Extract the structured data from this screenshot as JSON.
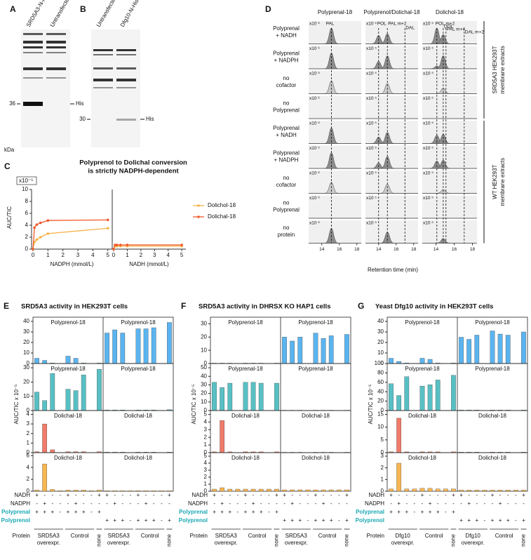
{
  "blots": [
    {
      "label": "A",
      "lanes": [
        "SRD5A3-N-His",
        "Untransfected"
      ],
      "marker": "36",
      "band": "His",
      "unit": "kDa"
    },
    {
      "label": "B",
      "lanes": [
        "Untransfected",
        "Dfg10-N-His"
      ],
      "marker": "30",
      "band": "His",
      "unit": "kDa"
    }
  ],
  "chromatograms": {
    "label": "D",
    "columns": [
      {
        "title": "Polyprenal-18",
        "scale": "x10 ⁶",
        "peaks": [
          "PAL"
        ]
      },
      {
        "title": "Polyprenol/Dolichal-18",
        "scale": "x10 ⁵",
        "peaks": [
          "POL",
          "PAL m+2",
          "DAL"
        ]
      },
      {
        "title": "Dolichol-18",
        "scale": "x10 ⁵",
        "peaks": [
          "POL m+2",
          "DOL",
          "PAL m+4",
          "DAL m+2"
        ]
      }
    ],
    "rows": [
      [
        "Polyprenal",
        "+ NADH"
      ],
      [
        "Polyprenal",
        "+ NADPH"
      ],
      [
        "no",
        "cofactor"
      ],
      [
        "no",
        "Polyprenal"
      ],
      [
        "Polyprenal",
        "+ NADH"
      ],
      [
        "Polyprenal",
        "+ NADPH"
      ],
      [
        "no",
        "cofactor"
      ],
      [
        "no",
        "Polyprenal"
      ],
      [
        "no",
        "protein"
      ]
    ],
    "groups": [
      [
        "SRD5A3 HEK293T",
        "membrane extracts"
      ],
      [
        "WT HEK293T",
        "membrane extracts"
      ]
    ],
    "xlim": [
      12.5,
      18.5
    ],
    "xticks": [
      14,
      16,
      18
    ],
    "xlabel": "Retention time (min)"
  },
  "chart_data": [
    {
      "type": "line",
      "label": "C",
      "title": [
        "Polyprenol to Dolichal conversion",
        "is strictly NADPH-dependent"
      ],
      "y_scale": "x10⁻⁵",
      "ylabel": "AUC/TIC",
      "xlabels": [
        "NADPH (mmol/L)",
        "NADH (mmol/L)"
      ],
      "x": [
        0,
        0.1,
        0.25,
        0.5,
        1,
        5
      ],
      "xlim": [
        0,
        5.2
      ],
      "xticks": [
        0,
        1,
        2,
        3,
        4,
        5
      ],
      "ylim": [
        0,
        10
      ],
      "yticks": [
        0,
        2,
        4,
        6,
        8,
        10
      ],
      "series": [
        {
          "name": "Dolichol-18",
          "color": "#f7b24a",
          "values": [
            0,
            1.2,
            1.6,
            2,
            2.6,
            3.5
          ],
          "values_nadh": [
            0,
            0.5,
            0.5,
            0.5,
            0.5,
            0.5
          ]
        },
        {
          "name": "Dolichal-18",
          "color": "#ef5a2a",
          "values": [
            0,
            3.6,
            4.1,
            4.4,
            4.8,
            4.9
          ],
          "values_nadh": [
            0,
            0.7,
            0.7,
            0.7,
            0.7,
            0.7
          ]
        }
      ]
    },
    {
      "type": "bar",
      "label": "E",
      "title": "SRD5A3 activity in HEK293T cells",
      "ylabel": "AUC/TIC x 10⁻⁵",
      "rows": [
        {
          "labels": [
            "Polyprenol-18",
            "Polyprenol-18"
          ],
          "ylim": [
            0,
            44
          ],
          "yticks": [
            0,
            10,
            20,
            30,
            40
          ],
          "color": "#5ab4ef",
          "values": [
            5,
            3,
            0.5,
            0,
            7,
            5,
            0.5,
            0,
            0.5,
            29,
            32,
            29,
            0,
            33,
            33,
            34,
            0,
            39
          ]
        },
        {
          "labels": [
            "Polyprenal-18",
            "Polyprenal-18"
          ],
          "ylim": [
            0,
            33
          ],
          "yticks": [
            0,
            10,
            20,
            30
          ],
          "color": "#58c0c4",
          "values": [
            13,
            7,
            26,
            0,
            15,
            14,
            25,
            0,
            29,
            0.4,
            0.4,
            0.4,
            0,
            0.4,
            0.4,
            0.4,
            0,
            0.6
          ]
        },
        {
          "labels": [
            "Dolichal-18",
            "Dolichal-18"
          ],
          "ylim": [
            0,
            4.4
          ],
          "yticks": [
            0,
            1,
            2,
            3,
            4
          ],
          "color": "#f07b6a",
          "values": [
            0.1,
            3,
            0.3,
            0,
            0.1,
            0.1,
            0.1,
            0,
            0.1,
            0.05,
            0.05,
            0.05,
            0,
            0.05,
            0.05,
            0.05,
            0,
            0.05
          ]
        },
        {
          "labels": [
            "Dolichol-18",
            "Dolichol-18"
          ],
          "ylim": [
            0,
            6.5
          ],
          "yticks": [
            0,
            2,
            4,
            6
          ],
          "color": "#f6b652",
          "values": [
            0.2,
            4.6,
            0.3,
            0.1,
            0.2,
            0.2,
            0.2,
            0.1,
            0.2,
            0.1,
            0.1,
            0.1,
            0.1,
            0.1,
            0.1,
            0.1,
            0.1,
            0.1
          ]
        }
      ],
      "conditions": [
        {
          "name": "NADH",
          "signs": [
            "+",
            "-",
            "-",
            "-",
            "+",
            "-",
            "-",
            "-",
            "+",
            "+",
            "-",
            "-",
            "-",
            "+",
            "-",
            "-",
            "-",
            "+"
          ]
        },
        {
          "name": "NADPH",
          "signs": [
            "-",
            "+",
            "-",
            "-",
            "-",
            "+",
            "-",
            "-",
            "-",
            "-",
            "+",
            "-",
            "-",
            "-",
            "+",
            "-",
            "-",
            "-"
          ]
        },
        {
          "name": "Polyprenal",
          "color": "#1aa9b3",
          "signs": [
            "+",
            "+",
            "+",
            "-",
            "+",
            "+",
            "+",
            "-",
            "+",
            null,
            null,
            null,
            null,
            null,
            null,
            null,
            null,
            null
          ]
        },
        {
          "name": "Polyprenol",
          "color": "#1aa9b3",
          "signs": [
            null,
            null,
            null,
            null,
            null,
            null,
            null,
            null,
            null,
            "+",
            "+",
            "+",
            "-",
            "+",
            "+",
            "+",
            "-",
            "+"
          ]
        }
      ],
      "protein_label": "Protein",
      "groups": [
        [
          "SRD5A3",
          "overexpr."
        ],
        [
          "Control"
        ],
        [
          "none"
        ],
        [
          "SRD5A3",
          "overexpr."
        ],
        [
          "Control"
        ],
        [
          "none"
        ]
      ]
    },
    {
      "type": "bar",
      "label": "F",
      "title": "SRD5A3 activity in DHRSX KO HAP1 cells",
      "ylabel": "AUC/TIC x 10⁻⁵",
      "rows": [
        {
          "labels": [
            "Polyprenol-18",
            "Polyprenol-18"
          ],
          "ylim": [
            0,
            35
          ],
          "yticks": [
            0,
            10,
            20,
            30
          ],
          "color": "#5ab4ef",
          "values": [
            0.3,
            0.3,
            0.3,
            0,
            0.3,
            0.3,
            0.3,
            0,
            0.3,
            20,
            17,
            20,
            0,
            23,
            19,
            21,
            0,
            22
          ]
        },
        {
          "labels": [
            "Polyprenal-18",
            "Polyprenal-18"
          ],
          "ylim": [
            0,
            55
          ],
          "yticks": [
            0,
            10,
            20,
            30,
            40,
            50
          ],
          "color": "#58c0c4",
          "values": [
            33,
            27,
            32,
            0,
            33,
            33,
            32,
            0,
            32,
            0.4,
            0.4,
            0.4,
            0,
            0.4,
            0.4,
            0.4,
            0,
            0.4
          ]
        },
        {
          "labels": [
            "Dolichal-18",
            "Dolichal-18"
          ],
          "ylim": [
            0,
            5.5
          ],
          "yticks": [
            0,
            1,
            2,
            3,
            4,
            5
          ],
          "color": "#f07b6a",
          "values": [
            0.1,
            4.2,
            0.1,
            0,
            0.1,
            0.1,
            0.1,
            0,
            0.1,
            0.05,
            0.05,
            0.05,
            0,
            0.05,
            0.05,
            0.05,
            0,
            0.05
          ]
        },
        {
          "labels": [
            "Dolichol-18",
            "Dolichol-18"
          ],
          "ylim": [
            0,
            5.5
          ],
          "yticks": [
            0,
            1,
            2,
            3,
            4,
            5
          ],
          "color": "#f6b652",
          "values": [
            0.3,
            0.5,
            0.3,
            0.3,
            0.3,
            0.3,
            0.3,
            0.3,
            0.3,
            0.2,
            0.2,
            0.2,
            0.2,
            0.2,
            0.2,
            0.2,
            0.2,
            0.2
          ]
        }
      ],
      "conditions": [
        {
          "name": "NADH",
          "signs": [
            "+",
            "-",
            "-",
            "-",
            "+",
            "-",
            "-",
            "-",
            "+",
            "+",
            "-",
            "-",
            "-",
            "+",
            "-",
            "-",
            "-",
            "+"
          ]
        },
        {
          "name": "NADPH",
          "signs": [
            "-",
            "+",
            "-",
            "-",
            "-",
            "+",
            "-",
            "-",
            "-",
            "-",
            "+",
            "-",
            "-",
            "-",
            "+",
            "-",
            "-",
            "-"
          ]
        },
        {
          "name": "Polyprenal",
          "color": "#1aa9b3",
          "signs": [
            "+",
            "+",
            "+",
            "-",
            "+",
            "+",
            "+",
            "-",
            "+",
            null,
            null,
            null,
            null,
            null,
            null,
            null,
            null,
            null
          ]
        },
        {
          "name": "Polyprenol",
          "color": "#1aa9b3",
          "signs": [
            null,
            null,
            null,
            null,
            null,
            null,
            null,
            null,
            null,
            "+",
            "+",
            "+",
            "-",
            "+",
            "+",
            "+",
            "-",
            "+"
          ]
        }
      ],
      "protein_label": "Protein",
      "groups": [
        [
          "SRD5A3",
          "overexpr."
        ],
        [
          "Control"
        ],
        [
          "none"
        ],
        [
          "SRD5A3",
          "overexpr."
        ],
        [
          "Control"
        ],
        [
          "none"
        ]
      ]
    },
    {
      "type": "bar",
      "label": "G",
      "title": "Yeast Dfg10 activity in HEK293T cells",
      "ylabel": "AUC/TIC x 10⁻⁵",
      "rows": [
        {
          "labels": [
            "Polyprenol-18",
            "Polyprenol-18"
          ],
          "ylim": [
            0,
            44
          ],
          "yticks": [
            0,
            10,
            20,
            30,
            40
          ],
          "color": "#5ab4ef",
          "values": [
            5,
            2,
            0.5,
            0,
            5,
            4,
            0.5,
            0,
            0.5,
            25,
            23,
            27,
            0,
            31,
            28,
            27,
            0,
            30
          ]
        },
        {
          "labels": [
            "Polyprenal-18",
            "Polyprenal-18"
          ],
          "ylim": [
            0,
            100
          ],
          "yticks": [
            0,
            20,
            40,
            60,
            80,
            100
          ],
          "color": "#58c0c4",
          "values": [
            57,
            32,
            72,
            0,
            52,
            55,
            65,
            0,
            75,
            1,
            1,
            1,
            0,
            1,
            1,
            1,
            0,
            1
          ]
        },
        {
          "labels": [
            "Dolichal-18",
            "Dolichal-18"
          ],
          "ylim": [
            0,
            16.5
          ],
          "yticks": [
            0,
            5,
            10,
            15
          ],
          "color": "#f07b6a",
          "values": [
            0.3,
            13.5,
            0.3,
            0,
            0.3,
            0.3,
            0.3,
            0,
            0.3,
            0.2,
            0.2,
            0.2,
            0,
            0.2,
            0.2,
            0.2,
            0,
            0.2
          ]
        },
        {
          "labels": [
            "Dolichol-18",
            "Dolichol-18"
          ],
          "ylim": [
            0,
            3.3
          ],
          "yticks": [
            0,
            1,
            2,
            3
          ],
          "color": "#f6b652",
          "values": [
            0.2,
            2.4,
            0.2,
            0.2,
            0.25,
            0.25,
            0.2,
            0.2,
            0.2,
            0.1,
            0.1,
            0.1,
            0.1,
            0.1,
            0.1,
            0.1,
            0.1,
            0.1
          ]
        }
      ],
      "conditions": [
        {
          "name": "NADH",
          "signs": [
            "+",
            "-",
            "-",
            "-",
            "+",
            "-",
            "-",
            "-",
            "+",
            "+",
            "-",
            "-",
            "-",
            "+",
            "-",
            "-",
            "-",
            "+"
          ]
        },
        {
          "name": "NADPH",
          "signs": [
            "-",
            "+",
            "-",
            "-",
            "-",
            "+",
            "-",
            "-",
            "-",
            "-",
            "+",
            "-",
            "-",
            "-",
            "+",
            "-",
            "-",
            "-"
          ]
        },
        {
          "name": "Polyprenal",
          "color": "#1aa9b3",
          "signs": [
            "+",
            "+",
            "+",
            "-",
            "+",
            "+",
            "+",
            "-",
            "+",
            null,
            null,
            null,
            null,
            null,
            null,
            null,
            null,
            null
          ]
        },
        {
          "name": "Polyprenol",
          "color": "#1aa9b3",
          "signs": [
            null,
            null,
            null,
            null,
            null,
            null,
            null,
            null,
            null,
            "+",
            "+",
            "+",
            "-",
            "+",
            "+",
            "+",
            "-",
            "+"
          ]
        }
      ],
      "protein_label": "Protein",
      "groups": [
        [
          "Dfg10",
          "overexpr."
        ],
        [
          "Control"
        ],
        [
          "none"
        ],
        [
          "Dfg10",
          "overexpr."
        ],
        [
          "Control"
        ],
        [
          "none"
        ]
      ]
    }
  ]
}
